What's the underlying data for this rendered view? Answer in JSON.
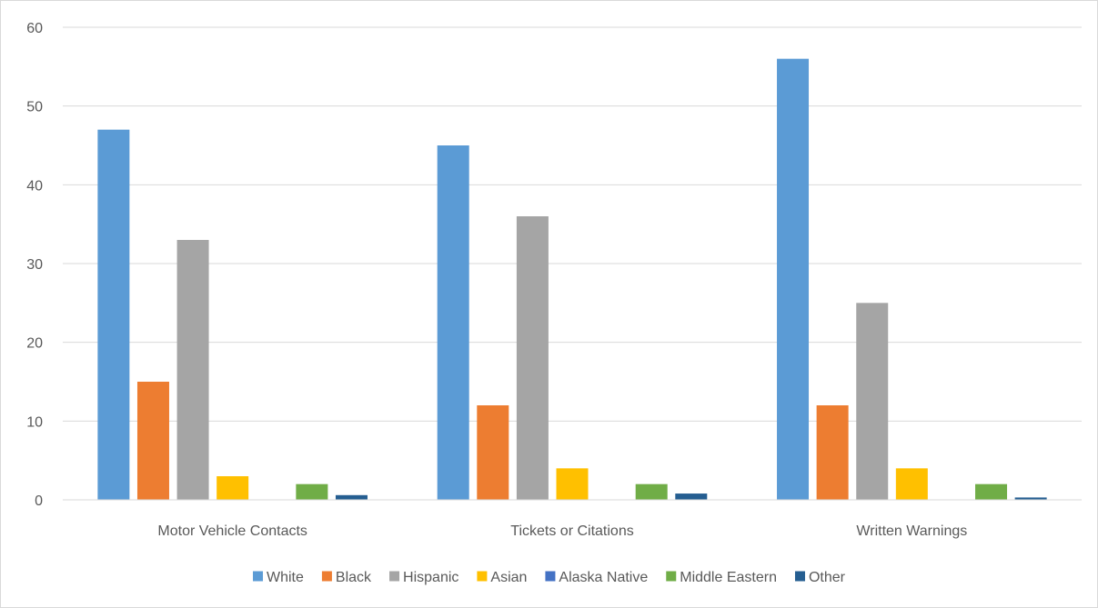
{
  "chart_data": {
    "type": "bar",
    "categories": [
      "Motor Vehicle Contacts",
      "Tickets or Citations",
      "Written Warnings"
    ],
    "series": [
      {
        "name": "White",
        "color": "#5b9bd5",
        "values": [
          47,
          45,
          56
        ]
      },
      {
        "name": "Black",
        "color": "#ed7d31",
        "values": [
          15,
          12,
          12
        ]
      },
      {
        "name": "Hispanic",
        "color": "#a5a5a5",
        "values": [
          33,
          36,
          25
        ]
      },
      {
        "name": "Asian",
        "color": "#ffc000",
        "values": [
          3,
          4,
          4
        ]
      },
      {
        "name": "Alaska Native",
        "color": "#4472c4",
        "values": [
          0,
          0,
          0
        ]
      },
      {
        "name": "Middle Eastern",
        "color": "#70ad47",
        "values": [
          2,
          2,
          2
        ]
      },
      {
        "name": "Other",
        "color": "#255e91",
        "values": [
          0.6,
          0.8,
          0.3
        ]
      }
    ],
    "yticks": [
      "0",
      "10",
      "20",
      "30",
      "40",
      "50",
      "60"
    ],
    "ylim": [
      0,
      60
    ],
    "title": "",
    "xlabel": "",
    "ylabel": "",
    "grid": true,
    "legend_position": "bottom"
  }
}
